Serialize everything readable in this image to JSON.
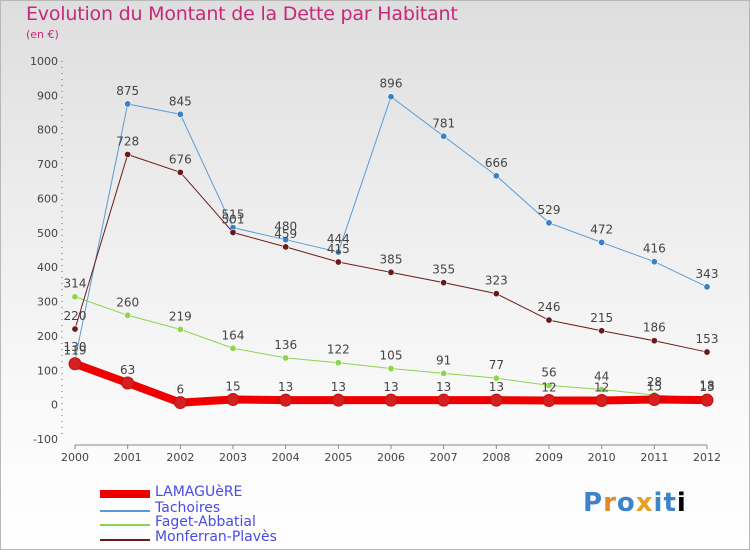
{
  "header": {
    "title": "Evolution du Montant de la Dette par Habitant",
    "subtitle": "(en €)"
  },
  "logo": {
    "text": "Proxiti",
    "colors": [
      "#3d83c9",
      "#e08a2a",
      "#e8a020"
    ]
  },
  "chart_data": {
    "type": "line",
    "title": "Evolution du Montant de la Dette par Habitant",
    "subtitle": "(en €)",
    "xlabel": "",
    "ylabel": "",
    "ylim": [
      -100,
      1000
    ],
    "yticks": [
      -100,
      0,
      100,
      200,
      300,
      400,
      500,
      600,
      700,
      800,
      900,
      1000
    ],
    "x": [
      "2000",
      "2001",
      "2002",
      "2003",
      "2004",
      "2005",
      "2006",
      "2007",
      "2008",
      "2009",
      "2010",
      "2011",
      "2012"
    ],
    "grid": false,
    "legend_position": "bottom-left",
    "series": [
      {
        "name": "LAMAGUèRE",
        "color": "#ee0000",
        "marker_color": "#d42020",
        "line_width": 8,
        "values": [
          119,
          63,
          6,
          15,
          13,
          13,
          13,
          13,
          13,
          12,
          12,
          15,
          13
        ]
      },
      {
        "name": "Tachoires",
        "color": "#5b9bd5",
        "marker_color": "#3a80c4",
        "line_width": 1,
        "values": [
          130,
          875,
          845,
          515,
          480,
          444,
          896,
          781,
          666,
          529,
          472,
          416,
          343
        ]
      },
      {
        "name": "Faget-Abbatial",
        "color": "#8dd44f",
        "marker_color": "#8dd44f",
        "line_width": 1,
        "values": [
          314,
          260,
          219,
          164,
          136,
          122,
          105,
          91,
          77,
          56,
          44,
          28,
          18
        ]
      },
      {
        "name": "Monferran-Plavès",
        "color": "#6a1a1a",
        "marker_color": "#6a1a1a",
        "line_width": 1,
        "values": [
          220,
          728,
          676,
          501,
          459,
          415,
          385,
          355,
          323,
          246,
          215,
          186,
          153
        ]
      }
    ],
    "data_labels": [
      [
        "119",
        "63",
        "6",
        "15",
        "13",
        "13",
        "13",
        "13",
        "13",
        "12",
        "12",
        "15",
        "13"
      ],
      [
        "130",
        "875",
        "845",
        "515",
        "480",
        "444",
        "896",
        "781",
        "666",
        "529",
        "472",
        "416",
        "343"
      ],
      [
        "314",
        "260",
        "219",
        "164",
        "136",
        "122",
        "105",
        "91",
        "77",
        "56",
        "44",
        "28",
        "18"
      ],
      [
        "220",
        "728",
        "676",
        "501",
        "459",
        "415",
        "385",
        "355",
        "323",
        "246",
        "215",
        "186",
        "153"
      ]
    ]
  }
}
